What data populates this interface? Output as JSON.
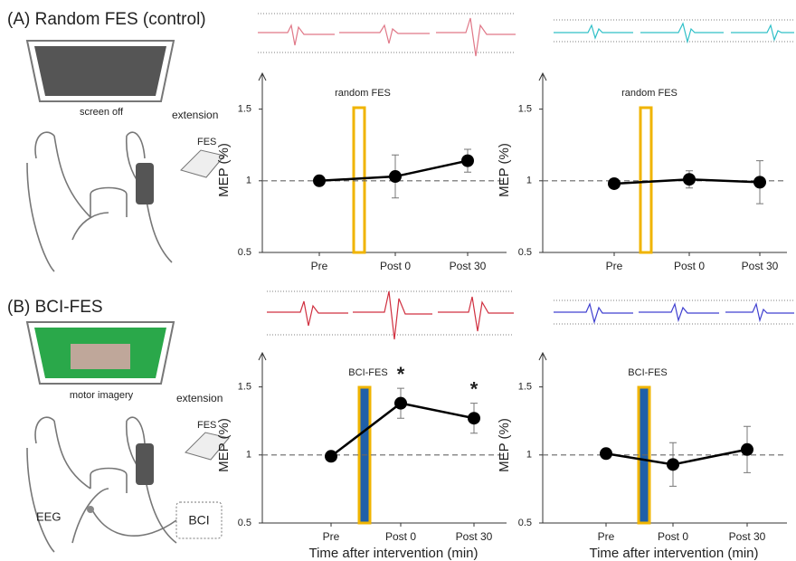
{
  "panels": [
    {
      "label": "(A) Random FES (control)",
      "screen": "screen off",
      "movement": "extension",
      "device": "FES"
    },
    {
      "label": "(B) BCI-FES",
      "screen": "motor imagery",
      "movement": "extension",
      "device": "FES",
      "recording": "EEG",
      "interface": "BCI"
    }
  ],
  "chart_data": [
    {
      "type": "line",
      "categories": [
        "Pre",
        "Post 0",
        "Post 30"
      ],
      "values": [
        1.0,
        1.03,
        1.14
      ],
      "errors": [
        0.02,
        0.15,
        0.08
      ],
      "color": "#000000",
      "ylabel": "MEP (%)",
      "ylim": [
        0.5,
        1.75
      ],
      "yticks": [
        0.5,
        1,
        1.5
      ],
      "reference_line": 1,
      "intervention": {
        "label": "random FES",
        "fill": "#ffffff",
        "edge": "#f0b400"
      }
    },
    {
      "type": "line",
      "categories": [
        "Pre",
        "Post 0",
        "Post 30"
      ],
      "values": [
        0.98,
        1.01,
        0.99
      ],
      "errors": [
        0.03,
        0.06,
        0.15
      ],
      "color": "#000000",
      "ylabel": "MEP (%)",
      "ylim": [
        0.5,
        1.75
      ],
      "yticks": [
        0.5,
        1,
        1.5
      ],
      "reference_line": 1,
      "intervention": {
        "label": "random FES",
        "fill": "#ffffff",
        "edge": "#f0b400"
      }
    },
    {
      "type": "line",
      "categories": [
        "Pre",
        "Post 0",
        "Post 30"
      ],
      "values": [
        0.99,
        1.38,
        1.27
      ],
      "errors": [
        0.02,
        0.11,
        0.11
      ],
      "markers": [
        null,
        "*",
        "*"
      ],
      "color": "#000000",
      "ylabel": "MEP (%)",
      "xlabel": "Time after intervention (min)",
      "ylim": [
        0.5,
        1.75
      ],
      "yticks": [
        0.5,
        1,
        1.5
      ],
      "reference_line": 1,
      "intervention": {
        "label": "BCI-FES",
        "fill": "#1f5fa8",
        "edge": "#f0b400"
      }
    },
    {
      "type": "line",
      "categories": [
        "Pre",
        "Post 0",
        "Post 30"
      ],
      "values": [
        1.01,
        0.93,
        1.04
      ],
      "errors": [
        0.02,
        0.16,
        0.17
      ],
      "color": "#000000",
      "ylabel": "MEP (%)",
      "xlabel": "Time after intervention (min)",
      "ylim": [
        0.5,
        1.75
      ],
      "yticks": [
        0.5,
        1,
        1.5
      ],
      "reference_line": 1,
      "intervention": {
        "label": "BCI-FES",
        "fill": "#1f5fa8",
        "edge": "#f0b400"
      }
    }
  ]
}
